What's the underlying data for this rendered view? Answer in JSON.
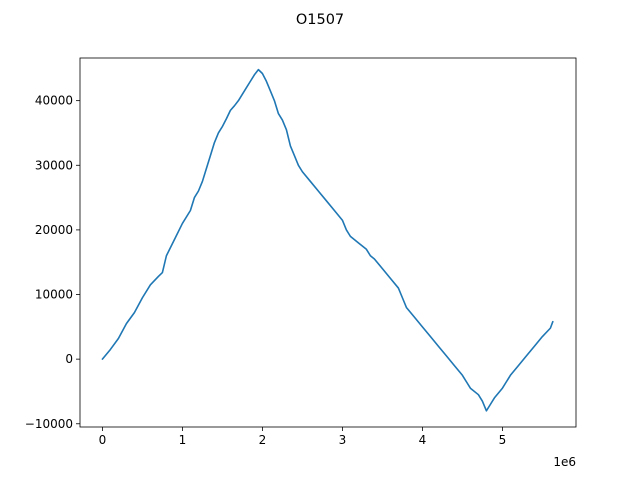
{
  "chart_data": {
    "type": "line",
    "title": "O1507",
    "xlabel": "",
    "ylabel": "",
    "x_offset_label": "1e6",
    "xlim": [
      -0.28,
      5.92
    ],
    "ylim": [
      -10500,
      46600
    ],
    "grid": false,
    "legend": "none",
    "line_color": "#1f77b4",
    "x_ticks": [
      0,
      1,
      2,
      3,
      4,
      5
    ],
    "x_tick_labels": [
      "0",
      "1",
      "2",
      "3",
      "4",
      "5"
    ],
    "y_ticks": [
      -10000,
      0,
      10000,
      20000,
      30000,
      40000
    ],
    "y_tick_labels": [
      "−10000",
      "0",
      "10000",
      "20000",
      "30000",
      "40000"
    ],
    "series": [
      {
        "x": [
          0,
          0.1,
          0.2,
          0.3,
          0.4,
          0.5,
          0.6,
          0.7,
          0.75,
          0.8,
          0.9,
          1.0,
          1.1,
          1.15,
          1.2,
          1.25,
          1.3,
          1.35,
          1.4,
          1.45,
          1.5,
          1.55,
          1.6,
          1.65,
          1.7,
          1.75,
          1.8,
          1.85,
          1.9,
          1.95,
          2.0,
          2.05,
          2.1,
          2.15,
          2.2,
          2.25,
          2.3,
          2.35,
          2.4,
          2.45,
          2.5,
          2.6,
          2.7,
          2.8,
          2.9,
          3.0,
          3.05,
          3.1,
          3.2,
          3.3,
          3.35,
          3.4,
          3.5,
          3.6,
          3.7,
          3.75,
          3.8,
          3.9,
          4.0,
          4.1,
          4.2,
          4.3,
          4.4,
          4.5,
          4.55,
          4.6,
          4.7,
          4.75,
          4.8,
          4.85,
          4.9,
          5.0,
          5.05,
          5.1,
          5.2,
          5.3,
          5.4,
          5.5,
          5.6,
          5.63
        ],
        "y": [
          0,
          1500,
          3200,
          5500,
          7200,
          9500,
          11500,
          12800,
          13400,
          16000,
          18500,
          21000,
          23000,
          25000,
          26000,
          27500,
          29500,
          31500,
          33500,
          35000,
          36000,
          37200,
          38500,
          39200,
          40000,
          41000,
          42000,
          43000,
          44000,
          44800,
          44200,
          43000,
          41500,
          40000,
          38000,
          37000,
          35500,
          33000,
          31500,
          30000,
          29000,
          27500,
          26000,
          24500,
          23000,
          21500,
          20000,
          19000,
          18000,
          17000,
          16000,
          15500,
          14000,
          12500,
          11000,
          9500,
          8000,
          6500,
          5000,
          3500,
          2000,
          500,
          -1000,
          -2500,
          -3500,
          -4500,
          -5500,
          -6500,
          -8000,
          -7000,
          -6000,
          -4500,
          -3500,
          -2500,
          -1000,
          500,
          2000,
          3500,
          4800,
          5800
        ]
      }
    ]
  }
}
